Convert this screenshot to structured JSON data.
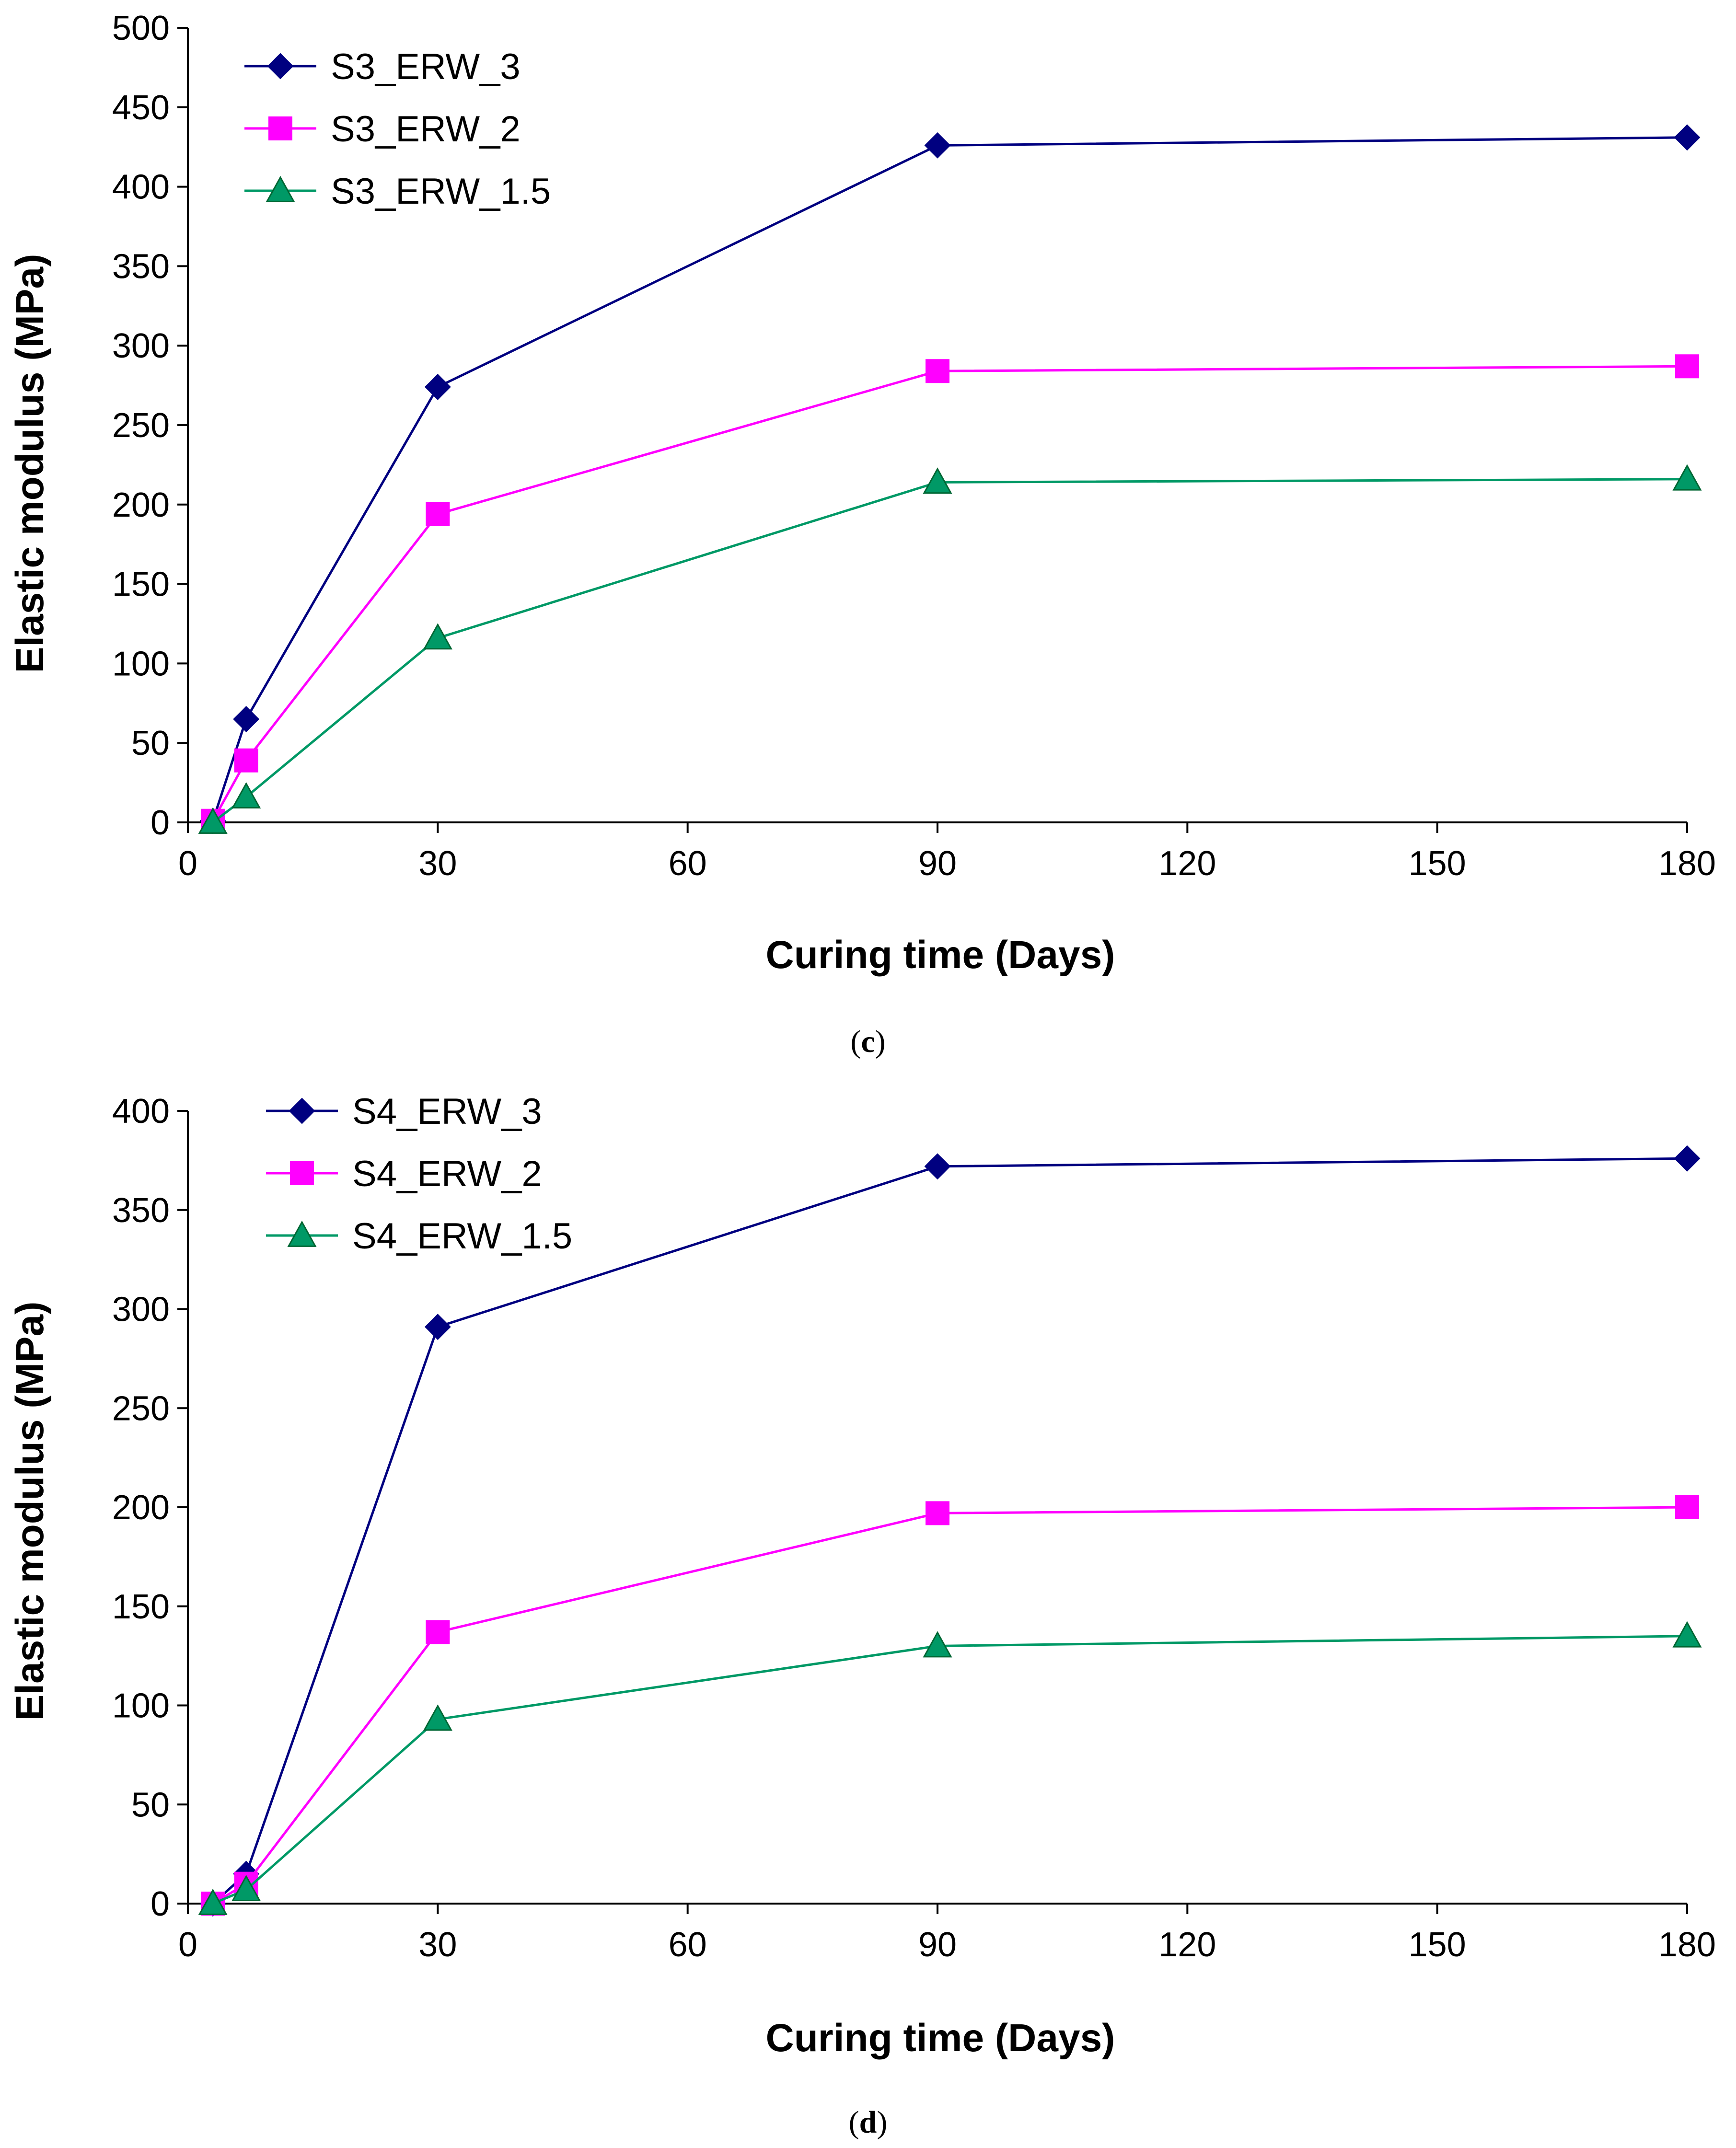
{
  "chart_data": [
    {
      "type": "line",
      "panel_label": "c",
      "xlabel": "Curing time (Days)",
      "ylabel": "Elastic modulus (MPa)",
      "xlim": [
        0,
        180
      ],
      "ylim": [
        0,
        500
      ],
      "xticks": [
        0,
        30,
        60,
        90,
        120,
        150,
        180
      ],
      "yticks": [
        0,
        50,
        100,
        150,
        200,
        250,
        300,
        350,
        400,
        450,
        500
      ],
      "x": [
        3,
        7,
        30,
        90,
        180
      ],
      "legend_position": "top-left",
      "series": [
        {
          "name": "S3_ERW_3",
          "values": [
            1,
            65,
            274,
            426,
            431
          ],
          "color": "#000080",
          "marker": "diamond"
        },
        {
          "name": "S3_ERW_2",
          "values": [
            1,
            39,
            194,
            284,
            287
          ],
          "color": "#FF00FF",
          "marker": "square"
        },
        {
          "name": "S3_ERW_1.5",
          "values": [
            0,
            16,
            116,
            214,
            216
          ],
          "color": "#009966",
          "marker": "triangle"
        }
      ]
    },
    {
      "type": "line",
      "panel_label": "d",
      "xlabel": "Curing time (Days)",
      "ylabel": "Elastic modulus (MPa)",
      "xlim": [
        0,
        180
      ],
      "ylim": [
        0,
        400
      ],
      "xticks": [
        0,
        30,
        60,
        90,
        120,
        150,
        180
      ],
      "yticks": [
        0,
        50,
        100,
        150,
        200,
        250,
        300,
        350,
        400
      ],
      "x": [
        3,
        7,
        30,
        90,
        180
      ],
      "legend_position": "top-left",
      "series": [
        {
          "name": "S4_ERW_3",
          "values": [
            0,
            15,
            291,
            372,
            376
          ],
          "color": "#000080",
          "marker": "diamond"
        },
        {
          "name": "S4_ERW_2",
          "values": [
            0,
            10,
            137,
            197,
            200
          ],
          "color": "#FF00FF",
          "marker": "square"
        },
        {
          "name": "S4_ERW_1.5",
          "values": [
            0,
            7,
            93,
            130,
            135
          ],
          "color": "#009966",
          "marker": "triangle"
        }
      ]
    }
  ]
}
